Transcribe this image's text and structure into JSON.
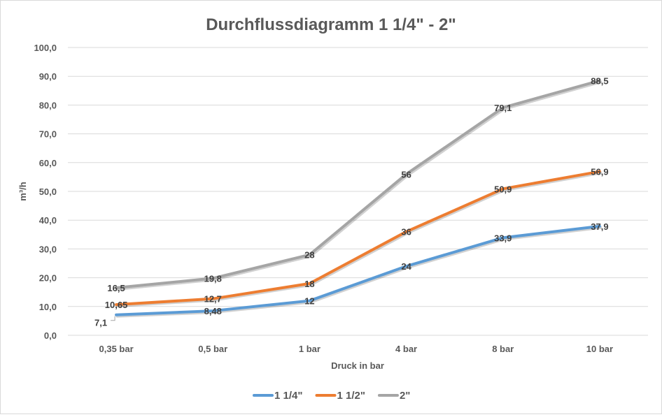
{
  "chart_data": {
    "type": "line",
    "title": "Durchflussdiagramm 1 1/4\" - 2\"",
    "xlabel": "Druck in bar",
    "ylabel": "m³/h",
    "ylim": [
      0,
      100
    ],
    "yticks": [
      "0,0",
      "10,0",
      "20,0",
      "30,0",
      "40,0",
      "50,0",
      "60,0",
      "70,0",
      "80,0",
      "90,0",
      "100,0"
    ],
    "categories": [
      "0,35 bar",
      "0,5 bar",
      "1 bar",
      "4 bar",
      "8 bar",
      "10 bar"
    ],
    "grid": true,
    "legend": "bottom",
    "series": [
      {
        "name": "1 1/4\"",
        "color": "#5B9BD5",
        "values": [
          7.1,
          8.48,
          12,
          24,
          33.9,
          37.9
        ],
        "labels": [
          "7,1",
          "8,48",
          "12",
          "24",
          "33,9",
          "37,9"
        ]
      },
      {
        "name": "1 1/2\"",
        "color": "#ED7D31",
        "values": [
          10.65,
          12.7,
          18,
          36,
          50.9,
          56.9
        ],
        "labels": [
          "10,65",
          "12,7",
          "18",
          "36",
          "50,9",
          "56,9"
        ]
      },
      {
        "name": "2\"",
        "color": "#A5A5A5",
        "values": [
          16.5,
          19.8,
          28,
          56,
          79.1,
          88.5
        ],
        "labels": [
          "16,5",
          "19,8",
          "28",
          "56",
          "79,1",
          "88,5"
        ]
      }
    ]
  }
}
